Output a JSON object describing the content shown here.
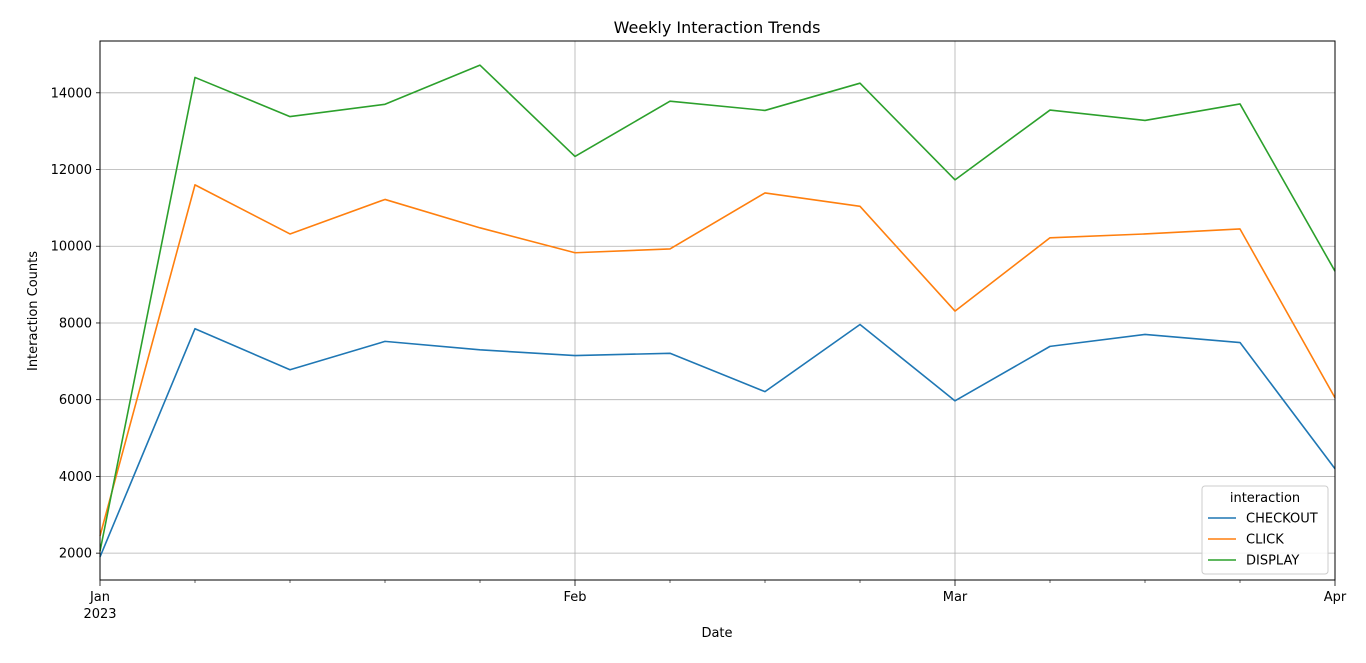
{
  "chart_data": {
    "type": "line",
    "title": "Weekly Interaction Trends",
    "xlabel": "Date",
    "ylabel": "Interaction Counts",
    "x": [
      "2023-01-01",
      "2023-01-08",
      "2023-01-15",
      "2023-01-22",
      "2023-01-29",
      "2023-02-05",
      "2023-02-12",
      "2023-02-19",
      "2023-02-26",
      "2023-03-05",
      "2023-03-12",
      "2023-03-19",
      "2023-03-26",
      "2023-04-02"
    ],
    "xlim": [
      "2023-01-01",
      "2023-04-02"
    ],
    "ylim": [
      1300,
      15350
    ],
    "x_tick_labels": [
      {
        "date": "2023-01-01",
        "label": "Jan",
        "sublabel": "2023"
      },
      {
        "date": "2023-02-05",
        "label": "Feb",
        "sublabel": ""
      },
      {
        "date": "2023-03-05",
        "label": "Mar",
        "sublabel": ""
      },
      {
        "date": "2023-04-02",
        "label": "Apr",
        "sublabel": ""
      }
    ],
    "y_ticks": [
      2000,
      4000,
      6000,
      8000,
      10000,
      12000,
      14000
    ],
    "y_tick_labels": [
      "2000",
      "4000",
      "6000",
      "8000",
      "10000",
      "12000",
      "14000"
    ],
    "grid": true,
    "legend": {
      "title": "interaction",
      "position": "lower-right"
    },
    "series": [
      {
        "name": "CHECKOUT",
        "color": "#1f77b4",
        "values": [
          1900,
          7850,
          6780,
          7520,
          7300,
          7150,
          7210,
          6210,
          7960,
          5970,
          7390,
          7700,
          7490,
          4200
        ]
      },
      {
        "name": "CLICK",
        "color": "#ff7f0e",
        "values": [
          2450,
          11600,
          10320,
          11220,
          10480,
          9830,
          9930,
          11390,
          11040,
          8310,
          10220,
          10320,
          10450,
          6050
        ]
      },
      {
        "name": "DISPLAY",
        "color": "#2ca02c",
        "values": [
          2050,
          14400,
          13380,
          13700,
          14720,
          12340,
          13780,
          13540,
          14250,
          11730,
          13550,
          13280,
          13710,
          9350
        ]
      }
    ]
  }
}
